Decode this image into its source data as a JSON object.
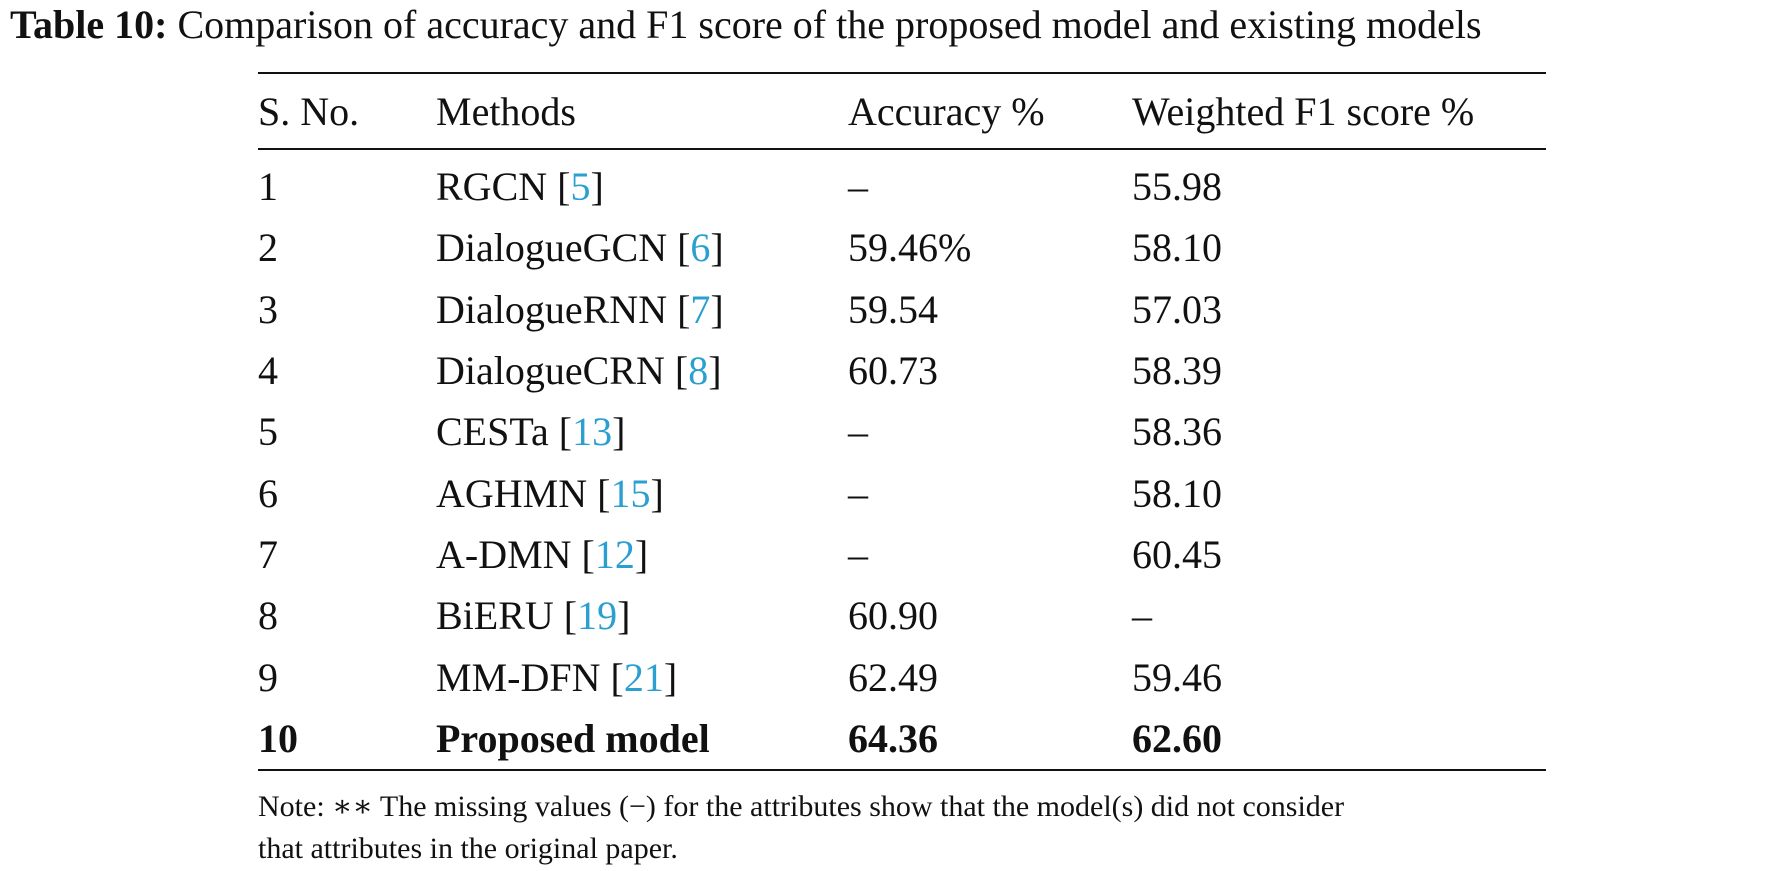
{
  "caption": {
    "label": "Table 10:",
    "text": "Comparison of accuracy and F1 score of the proposed model and existing models"
  },
  "table": {
    "headers": [
      "S. No.",
      "Methods",
      "Accuracy %",
      "Weighted F1 score %"
    ],
    "rows": [
      {
        "sno": "1",
        "method": "RGCN",
        "ref": "5",
        "accuracy": "–",
        "f1": "55.98",
        "bold": false
      },
      {
        "sno": "2",
        "method": "DialogueGCN",
        "ref": "6",
        "accuracy": "59.46%",
        "f1": "58.10",
        "bold": false
      },
      {
        "sno": "3",
        "method": "DialogueRNN",
        "ref": "7",
        "accuracy": "59.54",
        "f1": "57.03",
        "bold": false
      },
      {
        "sno": "4",
        "method": "DialogueCRN",
        "ref": "8",
        "accuracy": "60.73",
        "f1": "58.39",
        "bold": false
      },
      {
        "sno": "5",
        "method": "CESTa",
        "ref": "13",
        "accuracy": "–",
        "f1": "58.36",
        "bold": false
      },
      {
        "sno": "6",
        "method": "AGHMN",
        "ref": "15",
        "accuracy": "–",
        "f1": "58.10",
        "bold": false
      },
      {
        "sno": "7",
        "method": "A-DMN",
        "ref": "12",
        "accuracy": "–",
        "f1": "60.45",
        "bold": false
      },
      {
        "sno": "8",
        "method": "BiERU",
        "ref": "19",
        "accuracy": "60.90",
        "f1": "–",
        "bold": false
      },
      {
        "sno": "9",
        "method": "MM-DFN",
        "ref": "21",
        "accuracy": "62.49",
        "f1": "59.46",
        "bold": false
      },
      {
        "sno": "10",
        "method": "Proposed model",
        "ref": "",
        "accuracy": "64.36",
        "f1": "62.60",
        "bold": true
      }
    ]
  },
  "note": {
    "line1": "Note: ∗∗ The missing values (−) for the attributes show that the model(s) did not consider",
    "line2": "that attributes in the original paper."
  },
  "colors": {
    "reference_link": "#2a9fd0",
    "text": "#111111"
  }
}
